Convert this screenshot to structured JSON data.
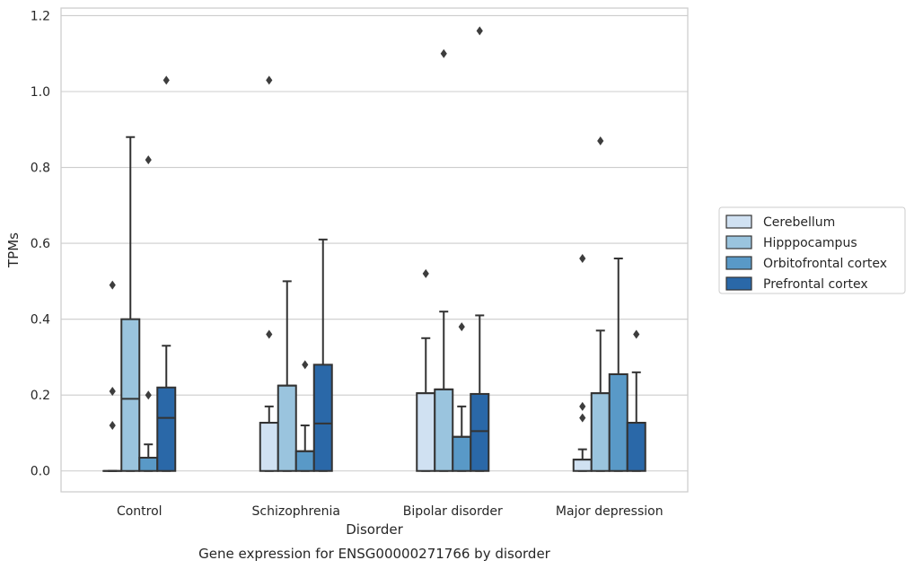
{
  "chart_data": {
    "type": "box",
    "caption": "Gene expression for ENSG00000271766 by disorder",
    "xlabel": "Disorder",
    "ylabel": "TPMs",
    "ylim": [
      -0.055,
      1.22
    ],
    "yticks": [
      "0.0",
      "0.2",
      "0.4",
      "0.6",
      "0.8",
      "1.0",
      "1.2"
    ],
    "grid": true,
    "legend_position": "right",
    "categories": [
      "Control",
      "Schizophrenia",
      "Bipolar disorder",
      "Major depression"
    ],
    "series": [
      {
        "name": "Cerebellum",
        "color": "#d0e1f2",
        "boxes": [
          {
            "q1": 0.0,
            "median": 0.0,
            "q3": 0.0,
            "low": 0.0,
            "high": 0.0,
            "outliers": [
              0.12,
              0.21,
              0.49
            ]
          },
          {
            "q1": 0.0,
            "median": 0.127,
            "q3": 0.127,
            "low": 0.0,
            "high": 0.17,
            "outliers": [
              0.36,
              1.03
            ]
          },
          {
            "q1": 0.0,
            "median": 0.205,
            "q3": 0.205,
            "low": 0.0,
            "high": 0.35,
            "outliers": [
              0.52
            ]
          },
          {
            "q1": 0.0,
            "median": 0.03,
            "q3": 0.03,
            "low": 0.0,
            "high": 0.057,
            "outliers": [
              0.14,
              0.17,
              0.56
            ]
          }
        ]
      },
      {
        "name": "Hipppocampus",
        "color": "#9ac4de",
        "boxes": [
          {
            "q1": 0.0,
            "median": 0.19,
            "q3": 0.4,
            "low": 0.0,
            "high": 0.88,
            "outliers": []
          },
          {
            "q1": 0.0,
            "median": 0.225,
            "q3": 0.225,
            "low": 0.0,
            "high": 0.5,
            "outliers": []
          },
          {
            "q1": 0.0,
            "median": 0.215,
            "q3": 0.215,
            "low": 0.0,
            "high": 0.42,
            "outliers": [
              1.1
            ]
          },
          {
            "q1": 0.0,
            "median": 0.205,
            "q3": 0.205,
            "low": 0.0,
            "high": 0.37,
            "outliers": [
              0.87
            ]
          }
        ]
      },
      {
        "name": "Orbitofrontal cortex",
        "color": "#5999c7",
        "boxes": [
          {
            "q1": 0.0,
            "median": 0.035,
            "q3": 0.035,
            "low": 0.0,
            "high": 0.07,
            "outliers": [
              0.2,
              0.82
            ]
          },
          {
            "q1": 0.0,
            "median": 0.052,
            "q3": 0.052,
            "low": 0.0,
            "high": 0.12,
            "outliers": [
              0.28
            ]
          },
          {
            "q1": 0.0,
            "median": 0.09,
            "q3": 0.09,
            "low": 0.0,
            "high": 0.17,
            "outliers": [
              0.38
            ]
          },
          {
            "q1": 0.0,
            "median": 0.255,
            "q3": 0.255,
            "low": 0.0,
            "high": 0.56,
            "outliers": []
          }
        ]
      },
      {
        "name": "Prefrontal cortex",
        "color": "#2a68a8",
        "boxes": [
          {
            "q1": 0.0,
            "median": 0.14,
            "q3": 0.22,
            "low": 0.0,
            "high": 0.33,
            "outliers": [
              1.03
            ]
          },
          {
            "q1": 0.0,
            "median": 0.125,
            "q3": 0.28,
            "low": 0.0,
            "high": 0.61,
            "outliers": []
          },
          {
            "q1": 0.0,
            "median": 0.105,
            "q3": 0.203,
            "low": 0.0,
            "high": 0.41,
            "outliers": [
              1.16
            ]
          },
          {
            "q1": 0.0,
            "median": 0.127,
            "q3": 0.127,
            "low": 0.0,
            "high": 0.26,
            "outliers": [
              0.36
            ]
          }
        ]
      }
    ]
  }
}
